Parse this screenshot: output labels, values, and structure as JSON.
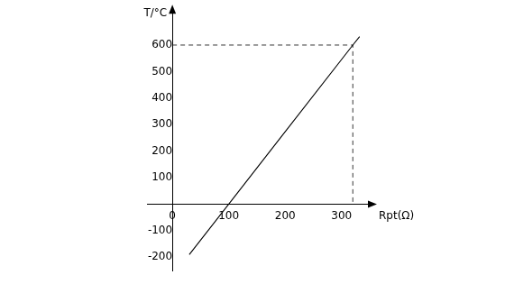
{
  "chart_data": {
    "type": "line",
    "xlabel": "Rpt(Ω)",
    "ylabel": "T/°C",
    "series": [
      {
        "color": "#000000",
        "line_style": "solid",
        "x": [
          30,
          100,
          200,
          320,
          332
        ],
        "values": [
          -190,
          0,
          273,
          600,
          632
        ]
      },
      {
        "color": "#000000",
        "line_style": "dashed",
        "x": [
          0,
          320,
          320
        ],
        "values": [
          600,
          600,
          0
        ]
      }
    ],
    "xlim": [
      -45,
      350
    ],
    "xticks": [
      0,
      100,
      200,
      300
    ],
    "ylim": [
      -250,
      725
    ],
    "yticks": [
      -200,
      -100,
      100,
      200,
      300,
      400,
      500,
      600
    ],
    "grid": false
  }
}
